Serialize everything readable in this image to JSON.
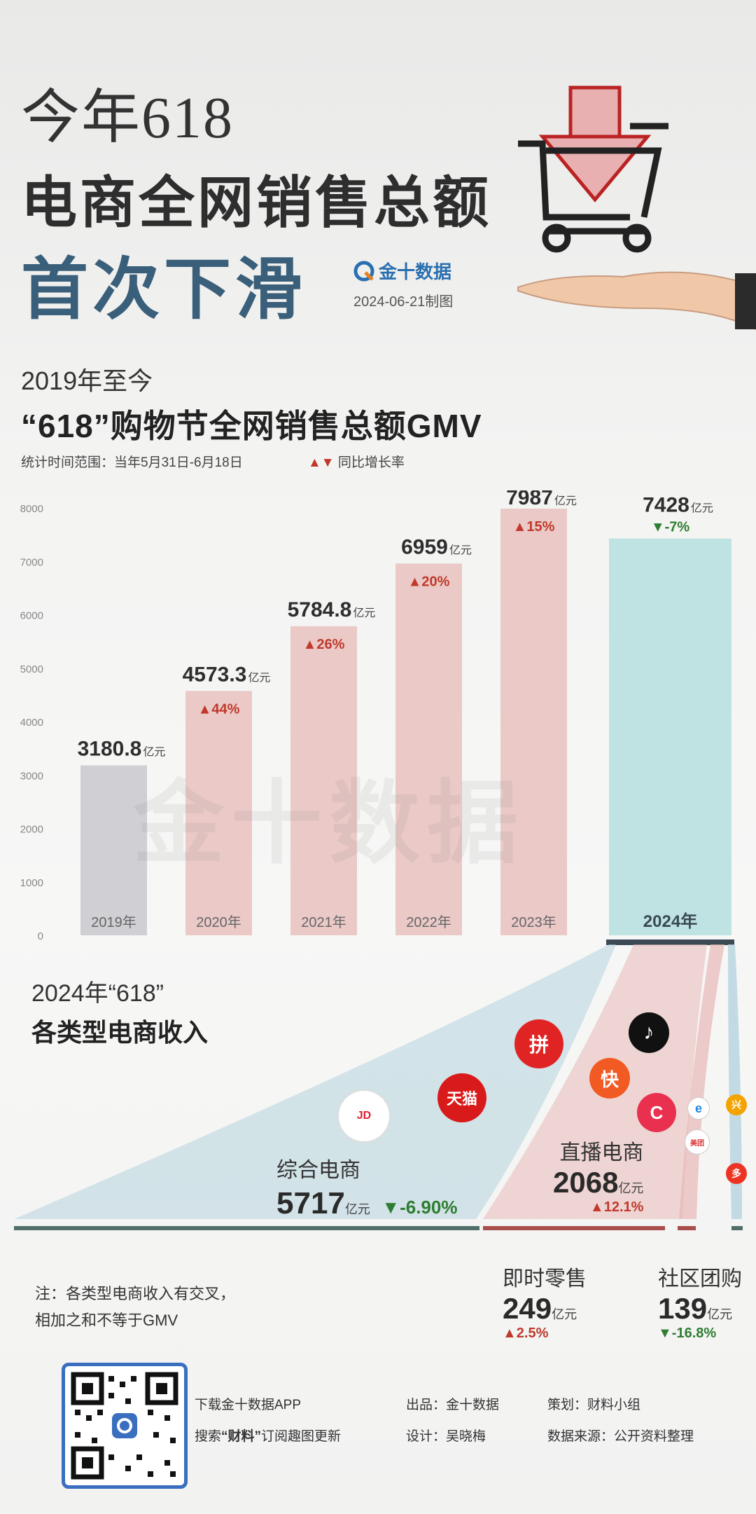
{
  "header": {
    "line1": "今年618",
    "line2": "电商全网销售总额",
    "line3": "首次下滑",
    "brand": "金十数据",
    "date": "2024-06-21制图"
  },
  "section1": {
    "subtitle1": "2019年至今",
    "subtitle2": "“618”购物节全网销售总额GMV",
    "range_note": "统计时间范围：当年5月31日-6月18日",
    "legend_arrows": "▲▼",
    "legend_label": "同比增长率"
  },
  "chart_data": {
    "type": "bar",
    "title": "“618”购物节全网销售总额GMV",
    "categories": [
      "2019年",
      "2020年",
      "2021年",
      "2022年",
      "2023年",
      "2024年"
    ],
    "values": [
      3180.8,
      4573.3,
      5784.8,
      6959,
      7987,
      7428
    ],
    "value_labels": [
      "3180.8",
      "4573.3",
      "5784.8",
      "6959",
      "7987",
      "7428"
    ],
    "unit": "亿元",
    "growth": [
      "",
      "44%",
      "26%",
      "20%",
      "15%",
      "-7%"
    ],
    "growth_direction": [
      "",
      "up",
      "up",
      "up",
      "up",
      "down"
    ],
    "yticks": [
      0,
      1000,
      2000,
      3000,
      4000,
      5000,
      6000,
      7000,
      8000
    ],
    "ylim": [
      0,
      8000
    ],
    "colors": {
      "2019": "#cfcfd4",
      "default": "#eac9c7",
      "2024": "#bfe3e2",
      "up": "#c0392b",
      "down": "#2e7d32"
    }
  },
  "watermark": "金十数据",
  "section2": {
    "title1": "2024年“618”",
    "title2": "各类型电商收入",
    "categories": [
      {
        "name": "综合电商",
        "value": "5717",
        "unit": "亿元",
        "change": "-6.90%",
        "dir": "down"
      },
      {
        "name": "直播电商",
        "value": "2068",
        "unit": "亿元",
        "change": "12.1%",
        "dir": "up"
      },
      {
        "name": "即时零售",
        "value": "249",
        "unit": "亿元",
        "change": "2.5%",
        "dir": "up"
      },
      {
        "name": "社区团购",
        "value": "139",
        "unit": "亿元",
        "change": "-16.8%",
        "dir": "down"
      }
    ],
    "logos": {
      "jd": "JD",
      "tmall": "天猫",
      "pdd": "拼",
      "douyin": "♪",
      "kuaishou": "快",
      "huya": "C",
      "ele": "e",
      "meituan": "美团",
      "xingsheng": "兴",
      "duoduo": "多"
    }
  },
  "footer": {
    "note_line1": "注：各类型电商收入有交叉，",
    "note_line2": "相加之和不等于GMV",
    "download": "下载金十数据APP",
    "search_prefix": "搜索",
    "search_key": "“财料”",
    "search_suffix": "订阅趣图更新",
    "publisher": "出品：金十数据",
    "designer": "设计：吴晓梅",
    "planner": "策划：财料小组",
    "source": "数据来源：公开资料整理"
  }
}
